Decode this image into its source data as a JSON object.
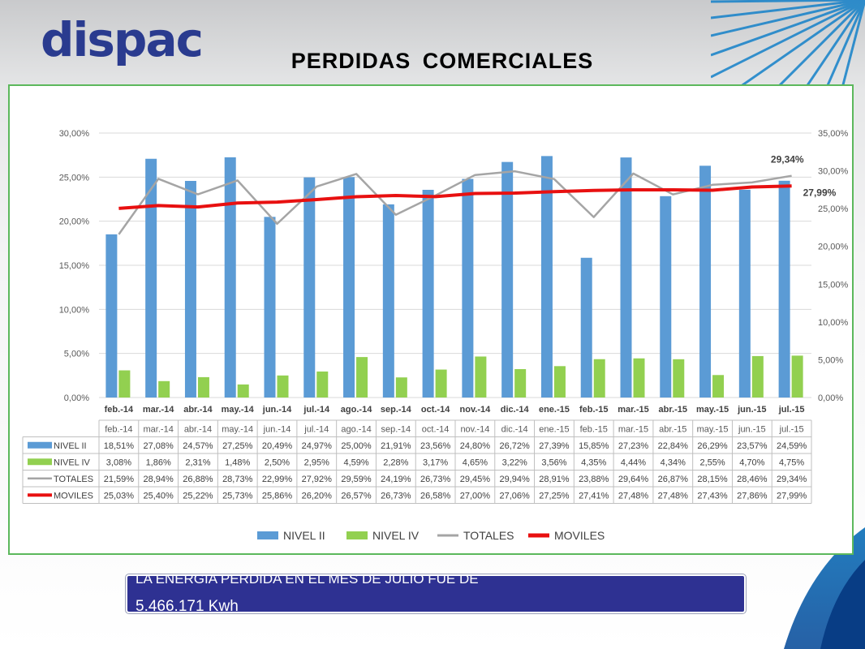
{
  "logo": {
    "text": "dispac"
  },
  "title": "PERDIDAS COMERCIALES",
  "chart_data": {
    "type": "bar",
    "title": "",
    "xlabel": "",
    "ylabel": "",
    "categories": [
      "feb.-14",
      "mar.-14",
      "abr.-14",
      "may.-14",
      "jun.-14",
      "jul.-14",
      "ago.-14",
      "sep.-14",
      "oct.-14",
      "nov.-14",
      "dic.-14",
      "ene.-15",
      "feb.-15",
      "mar.-15",
      "abr.-15",
      "may.-15",
      "jun.-15",
      "jul.-15"
    ],
    "series": [
      {
        "name": "NIVEL II",
        "type": "bar",
        "axis": "left",
        "color": "#5b9bd5",
        "values": [
          18.51,
          27.08,
          24.57,
          27.25,
          20.49,
          24.97,
          25.0,
          21.91,
          23.56,
          24.8,
          26.72,
          27.39,
          15.85,
          27.23,
          22.84,
          26.29,
          23.57,
          24.59
        ],
        "labels": [
          "18,51%",
          "27,08%",
          "24,57%",
          "27,25%",
          "20,49%",
          "24,97%",
          "25,00%",
          "21,91%",
          "23,56%",
          "24,80%",
          "26,72%",
          "27,39%",
          "15,85%",
          "27,23%",
          "22,84%",
          "26,29%",
          "23,57%",
          "24,59%"
        ]
      },
      {
        "name": "NIVEL IV",
        "type": "bar",
        "axis": "left",
        "color": "#92d050",
        "values": [
          3.08,
          1.86,
          2.31,
          1.48,
          2.5,
          2.95,
          4.59,
          2.28,
          3.17,
          4.65,
          3.22,
          3.56,
          4.35,
          4.44,
          4.34,
          2.55,
          4.7,
          4.75
        ],
        "labels": [
          "3,08%",
          "1,86%",
          "2,31%",
          "1,48%",
          "2,50%",
          "2,95%",
          "4,59%",
          "2,28%",
          "3,17%",
          "4,65%",
          "3,22%",
          "3,56%",
          "4,35%",
          "4,44%",
          "4,34%",
          "2,55%",
          "4,70%",
          "4,75%"
        ]
      },
      {
        "name": "TOTALES",
        "type": "line",
        "axis": "right",
        "color": "#a5a5a5",
        "values": [
          21.59,
          28.94,
          26.88,
          28.73,
          22.99,
          27.92,
          29.59,
          24.19,
          26.73,
          29.45,
          29.94,
          28.91,
          23.88,
          29.64,
          26.87,
          28.15,
          28.46,
          29.34
        ],
        "labels": [
          "21,59%",
          "28,94%",
          "26,88%",
          "28,73%",
          "22,99%",
          "27,92%",
          "29,59%",
          "24,19%",
          "26,73%",
          "29,45%",
          "29,94%",
          "28,91%",
          "23,88%",
          "29,64%",
          "26,87%",
          "28,15%",
          "28,46%",
          "29,34%"
        ]
      },
      {
        "name": "MOVILES",
        "type": "line",
        "axis": "right",
        "color": "#e81010",
        "values": [
          25.03,
          25.4,
          25.22,
          25.73,
          25.86,
          26.2,
          26.57,
          26.73,
          26.58,
          27.0,
          27.06,
          27.25,
          27.41,
          27.48,
          27.48,
          27.43,
          27.86,
          27.99
        ],
        "labels": [
          "25,03%",
          "25,40%",
          "25,22%",
          "25,73%",
          "25,86%",
          "26,20%",
          "26,57%",
          "26,73%",
          "26,58%",
          "27,00%",
          "27,06%",
          "27,25%",
          "27,41%",
          "27,48%",
          "27,48%",
          "27,43%",
          "27,86%",
          "27,99%"
        ]
      }
    ],
    "y_left": {
      "min": 0,
      "max": 30,
      "ticks": [
        "0,00%",
        "5,00%",
        "10,00%",
        "15,00%",
        "20,00%",
        "25,00%",
        "30,00%"
      ]
    },
    "y_right": {
      "min": 0,
      "max": 35,
      "ticks": [
        "0,00%",
        "5,00%",
        "10,00%",
        "15,00%",
        "20,00%",
        "25,00%",
        "30,00%",
        "35,00%"
      ]
    },
    "annotations": [
      {
        "series": "TOTALES",
        "index": 17,
        "text": "29,34%"
      },
      {
        "series": "MOVILES",
        "index": 17,
        "text": "27,99%"
      }
    ],
    "grid": true,
    "legend": "bottom",
    "data_table": true
  },
  "info": {
    "line1": "LA ENERGIA PERDIDA EN EL MES DE JULIO FUE DE",
    "line2": "5.466.171 Kwh"
  }
}
